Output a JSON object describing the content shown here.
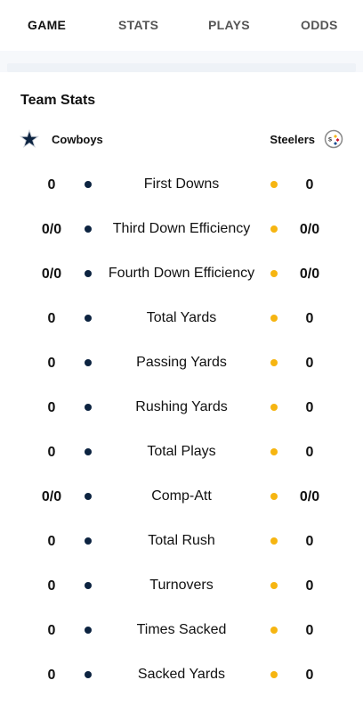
{
  "tabs": [
    {
      "label": "GAME",
      "active": true
    },
    {
      "label": "STATS",
      "active": false
    },
    {
      "label": "PLAYS",
      "active": false
    },
    {
      "label": "ODDS",
      "active": false
    }
  ],
  "section": {
    "title": "Team Stats"
  },
  "teams": {
    "home": {
      "name": "Cowboys",
      "color": "#0c2340",
      "logo": "cowboys-star-icon"
    },
    "away": {
      "name": "Steelers",
      "color": "#f6b511",
      "logo": "steelers-logo-icon"
    }
  },
  "stats": [
    {
      "label": "First Downs",
      "left": "0",
      "right": "0"
    },
    {
      "label": "Third Down Efficiency",
      "left": "0/0",
      "right": "0/0"
    },
    {
      "label": "Fourth Down Efficiency",
      "left": "0/0",
      "right": "0/0"
    },
    {
      "label": "Total Yards",
      "left": "0",
      "right": "0"
    },
    {
      "label": "Passing Yards",
      "left": "0",
      "right": "0"
    },
    {
      "label": "Rushing Yards",
      "left": "0",
      "right": "0"
    },
    {
      "label": "Total Plays",
      "left": "0",
      "right": "0"
    },
    {
      "label": "Comp-Att",
      "left": "0/0",
      "right": "0/0"
    },
    {
      "label": "Total Rush",
      "left": "0",
      "right": "0"
    },
    {
      "label": "Turnovers",
      "left": "0",
      "right": "0"
    },
    {
      "label": "Times Sacked",
      "left": "0",
      "right": "0"
    },
    {
      "label": "Sacked Yards",
      "left": "0",
      "right": "0"
    }
  ]
}
